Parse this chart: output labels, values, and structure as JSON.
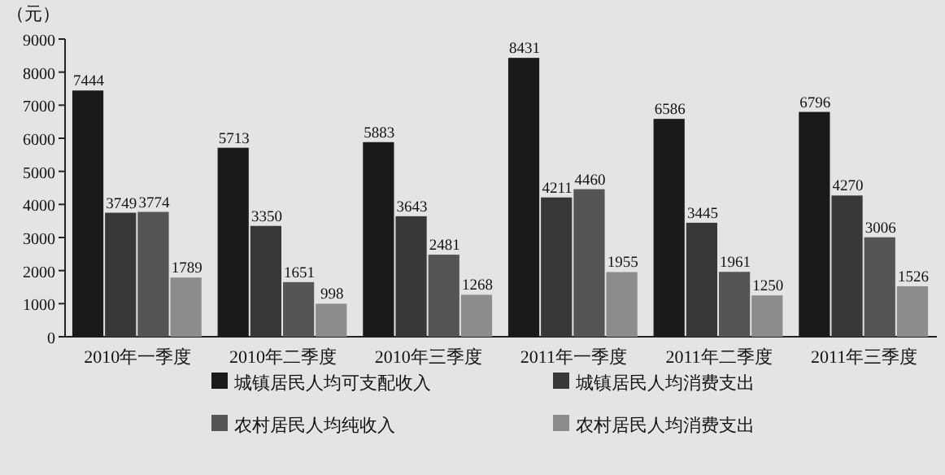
{
  "chart_data": {
    "type": "bar",
    "ylabel": "（元）",
    "categories": [
      "2010年一季度",
      "2010年二季度",
      "2010年三季度",
      "2011年一季度",
      "2011年二季度",
      "2011年三季度"
    ],
    "series": [
      {
        "name": "城镇居民人均可支配收入",
        "color": "#1a1a1a",
        "values": [
          7444,
          5713,
          5883,
          8431,
          6586,
          6796
        ]
      },
      {
        "name": "城镇居民人均消费支出",
        "color": "#383838",
        "values": [
          3749,
          3350,
          3643,
          4211,
          3445,
          4270
        ]
      },
      {
        "name": "农村居民人均纯收入",
        "color": "#555555",
        "values": [
          3774,
          1651,
          2481,
          4460,
          1961,
          3006
        ]
      },
      {
        "name": "农村居民人均消费支出",
        "color": "#8c8c8c",
        "values": [
          1789,
          998,
          1268,
          1955,
          1250,
          1526
        ]
      }
    ],
    "ylim": [
      0,
      9000
    ],
    "yticks": [
      0,
      1000,
      2000,
      3000,
      4000,
      5000,
      6000,
      7000,
      8000,
      9000
    ],
    "data_labels": true,
    "legend": "bottom"
  }
}
